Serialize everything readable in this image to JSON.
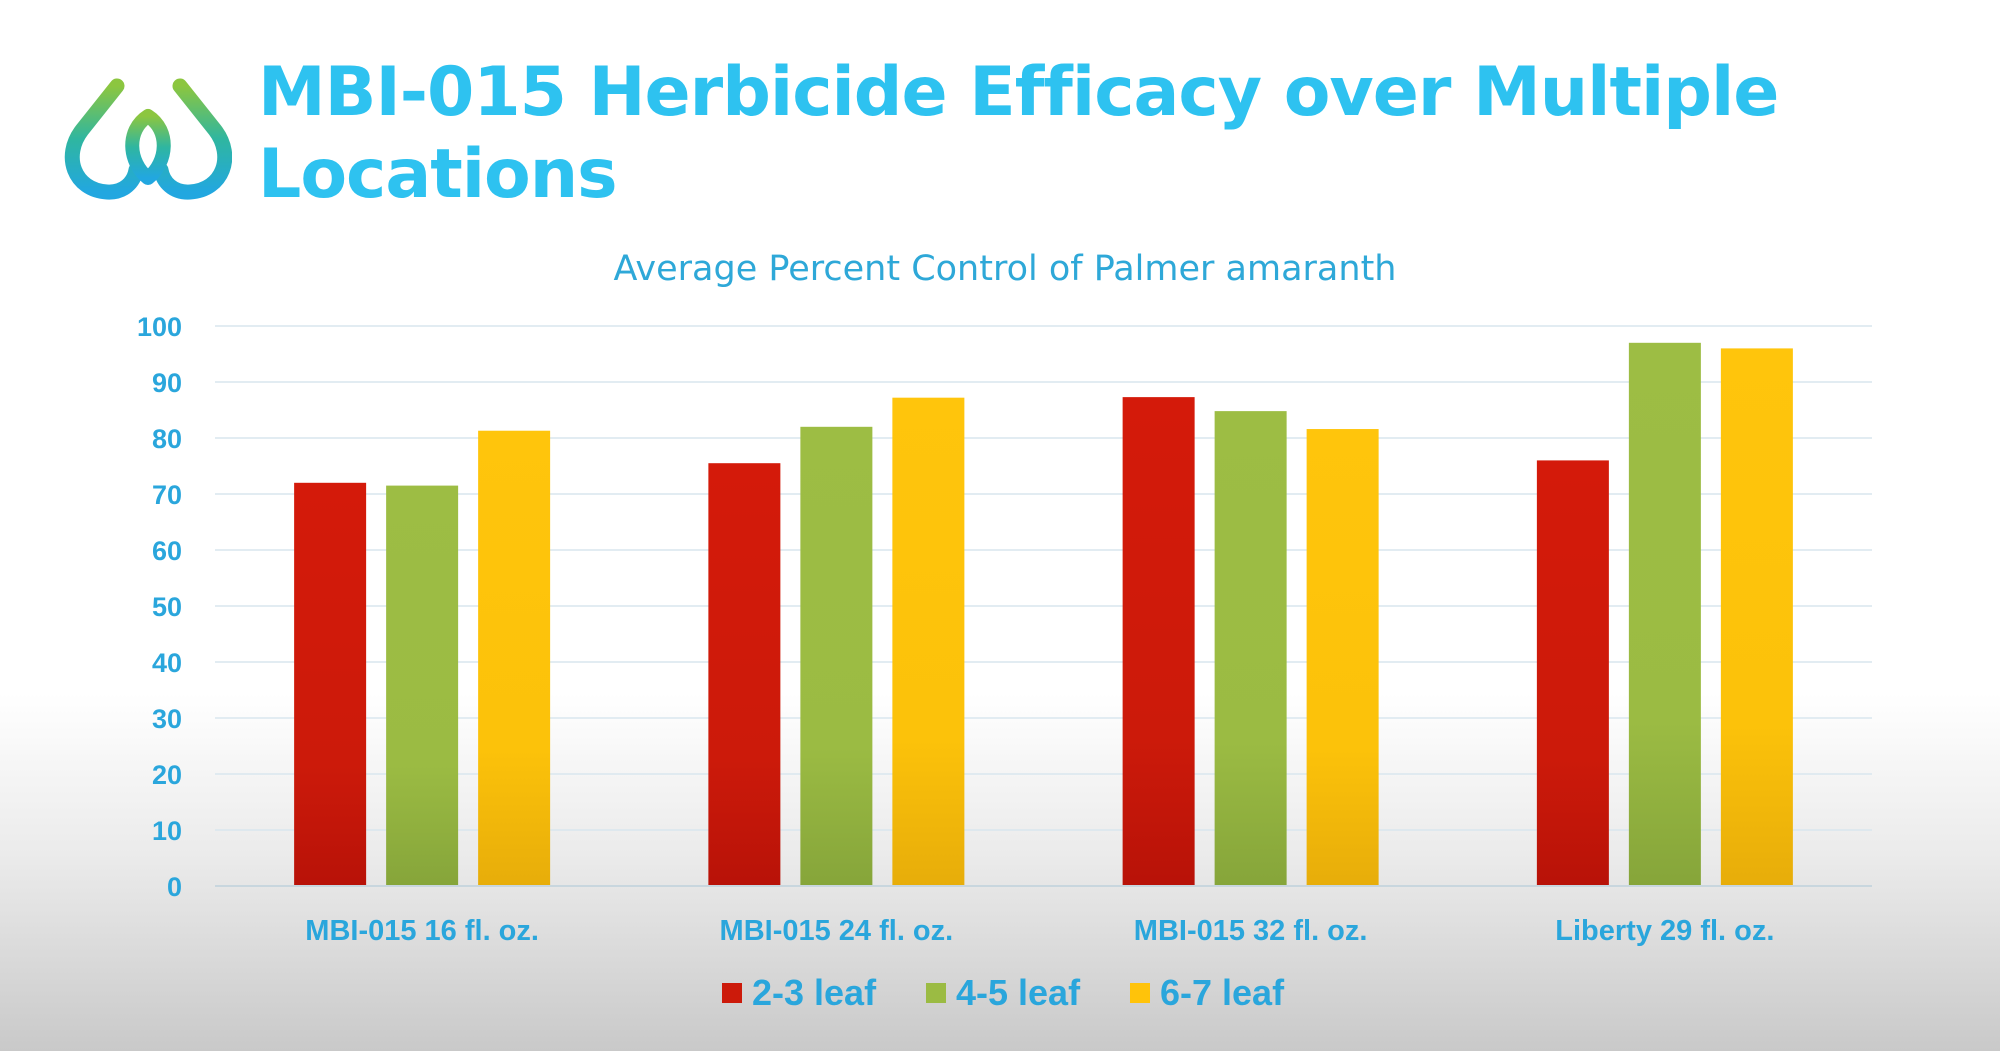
{
  "slide": {
    "title": "MBI-015 Herbicide Efficacy over Multiple Locations"
  },
  "colors": {
    "title": "#2ec2f0",
    "axis_text": "#2aa6dc",
    "series_2_3_leaf": "#cc1a0a",
    "series_4_5_leaf": "#9bbb43",
    "series_6_7_leaf": "#ffc30a"
  },
  "chart_data": {
    "type": "bar",
    "title": "Average Percent Control of Palmer amaranth",
    "xlabel": "",
    "ylabel": "",
    "ylim": [
      0,
      100
    ],
    "yticks": [
      0,
      10,
      20,
      30,
      40,
      50,
      60,
      70,
      80,
      90,
      100
    ],
    "grid": true,
    "legend_position": "bottom",
    "categories": [
      "MBI-015 16 fl. oz.",
      "MBI-015 24 fl. oz.",
      "MBI-015 32 fl. oz.",
      "Liberty 29 fl. oz."
    ],
    "series": [
      {
        "name": "2-3 leaf",
        "color": "#cc1a0a",
        "values": [
          72,
          75.5,
          87.3,
          76
        ]
      },
      {
        "name": "4-5 leaf",
        "color": "#9bbb43",
        "values": [
          71.5,
          82,
          84.8,
          97
        ]
      },
      {
        "name": "6-7 leaf",
        "color": "#ffc30a",
        "values": [
          81.3,
          87.2,
          81.6,
          96
        ]
      }
    ]
  }
}
